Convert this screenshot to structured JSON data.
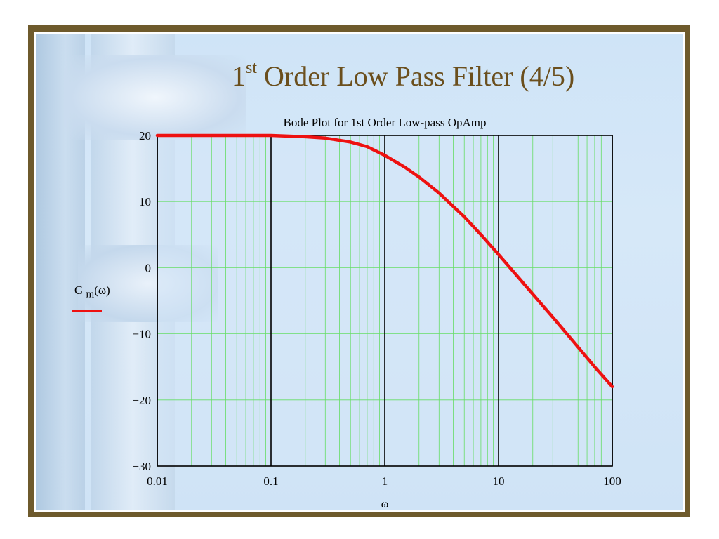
{
  "slide": {
    "title_main": "1",
    "title_sup": "st",
    "title_rest": " Order Low Pass Filter (4/5)"
  },
  "legend": {
    "symbol": "G",
    "subscript": "m",
    "argument": "(ω)",
    "color": "#ee1111"
  },
  "chart_data": {
    "type": "line",
    "title": "Bode Plot for 1st Order Low-pass OpAmp",
    "xlabel": "ω",
    "ylabel": "",
    "xscale": "log",
    "xlim": [
      0.01,
      100
    ],
    "ylim": [
      -30,
      20
    ],
    "xticks": [
      0.01,
      0.1,
      1,
      10,
      100
    ],
    "xtick_labels": [
      "0.01",
      "0.1",
      "1",
      "10",
      "100"
    ],
    "yticks": [
      20,
      10,
      0,
      -10,
      -20,
      -30
    ],
    "ytick_labels": [
      "20",
      "10",
      "0",
      "−10",
      "−20",
      "−30"
    ],
    "grid": true,
    "grid_color": "#66dd66",
    "series": [
      {
        "name": "",
        "color": "#ee1111",
        "x": [
          0.01,
          0.02,
          0.05,
          0.1,
          0.2,
          0.3,
          0.5,
          0.7,
          1,
          1.5,
          2,
          3,
          5,
          7,
          10,
          15,
          20,
          30,
          50,
          70,
          100
        ],
        "y": [
          20,
          20,
          20,
          20,
          19.8,
          19.6,
          19.0,
          18.3,
          17.0,
          15.2,
          13.7,
          11.3,
          7.7,
          5.0,
          2.0,
          -1.5,
          -4.0,
          -7.5,
          -12.0,
          -15.0,
          -18.0
        ]
      }
    ]
  }
}
